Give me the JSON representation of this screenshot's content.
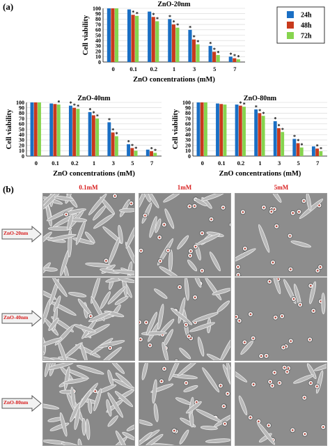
{
  "panel_labels": {
    "a": "(a)",
    "b": "(b)"
  },
  "legend": {
    "colors": {
      "24h": "#1a6fc4",
      "48h": "#c83a1c",
      "72h": "#86d44e"
    }
  },
  "chart_data": [
    {
      "type": "bar",
      "title": "ZnO-20nm",
      "xlabel": "ZnO concentrations (mM)",
      "ylabel": "Cell viability",
      "ylim": [
        0,
        100
      ],
      "yticks": [
        "0",
        "10",
        "20",
        "30",
        "40",
        "50",
        "60",
        "70",
        "80",
        "90",
        "100"
      ],
      "categories": [
        "0",
        "0.1",
        "0.2",
        "1",
        "3",
        "5",
        "7"
      ],
      "series": [
        {
          "name": "24h",
          "values": [
            100,
            98,
            94,
            80,
            60,
            30,
            10
          ]
        },
        {
          "name": "48h",
          "values": [
            100,
            88,
            84,
            70,
            42,
            19,
            7
          ]
        },
        {
          "name": "72h",
          "values": [
            100,
            86,
            76,
            64,
            33,
            13,
            5
          ]
        }
      ],
      "stars": [
        [
          0,
          0,
          0
        ],
        [
          0,
          1,
          1
        ],
        [
          0,
          1,
          1
        ],
        [
          1,
          1,
          1
        ],
        [
          1,
          1,
          1
        ],
        [
          1,
          1,
          1
        ],
        [
          1,
          1,
          1
        ]
      ],
      "star_symbol": "*",
      "legend_position": "top-right"
    },
    {
      "type": "bar",
      "title": "ZnO-40nm",
      "xlabel": "ZnO concentrations (mM)",
      "ylabel": "Cell viability",
      "ylim": [
        0,
        100
      ],
      "yticks": [
        "0",
        "10",
        "20",
        "30",
        "40",
        "50",
        "60",
        "70",
        "80",
        "90",
        "100"
      ],
      "categories": [
        "0",
        "0.1",
        "0.2",
        "1",
        "3",
        "5",
        "7"
      ],
      "series": [
        {
          "name": "24h",
          "values": [
            100,
            98,
            94,
            82,
            63,
            22,
            12
          ]
        },
        {
          "name": "48h",
          "values": [
            100,
            97,
            90,
            76,
            44,
            15,
            9
          ]
        },
        {
          "name": "72h",
          "values": [
            100,
            96,
            88,
            70,
            37,
            10,
            6
          ]
        }
      ],
      "stars": [
        [
          0,
          0,
          0
        ],
        [
          0,
          0,
          1
        ],
        [
          1,
          1,
          1
        ],
        [
          1,
          1,
          1
        ],
        [
          1,
          1,
          1
        ],
        [
          1,
          1,
          1
        ],
        [
          0,
          1,
          1
        ]
      ],
      "star_symbol": "*",
      "legend_position": "none"
    },
    {
      "type": "bar",
      "title": "ZnO-80nm",
      "xlabel": "ZnO concentrations (mM)",
      "ylabel": "Cell viability",
      "ylim": [
        0,
        100
      ],
      "yticks": [
        "0",
        "10",
        "20",
        "30",
        "40",
        "50",
        "60",
        "70",
        "80",
        "90",
        "100"
      ],
      "categories": [
        "0",
        "0.1",
        "0.2",
        "1",
        "3",
        "5",
        "7"
      ],
      "series": [
        {
          "name": "24h",
          "values": [
            100,
            98,
            96,
            87,
            65,
            32,
            18
          ]
        },
        {
          "name": "48h",
          "values": [
            100,
            97,
            94,
            80,
            52,
            24,
            14
          ]
        },
        {
          "name": "72h",
          "values": [
            100,
            96,
            92,
            75,
            45,
            16,
            9
          ]
        }
      ],
      "stars": [
        [
          0,
          0,
          0
        ],
        [
          0,
          0,
          0
        ],
        [
          0,
          1,
          1
        ],
        [
          1,
          1,
          1
        ],
        [
          1,
          1,
          1
        ],
        [
          1,
          1,
          1
        ],
        [
          0,
          1,
          1
        ]
      ],
      "star_symbol": "*",
      "legend_position": "none"
    }
  ],
  "micrographs": {
    "columns": [
      "0.1mM",
      "1mM",
      "5mM"
    ],
    "rows": [
      "ZnO-20nm",
      "ZnO-40nm",
      "ZnO-80nm"
    ],
    "label_color": "#d81e1e"
  }
}
